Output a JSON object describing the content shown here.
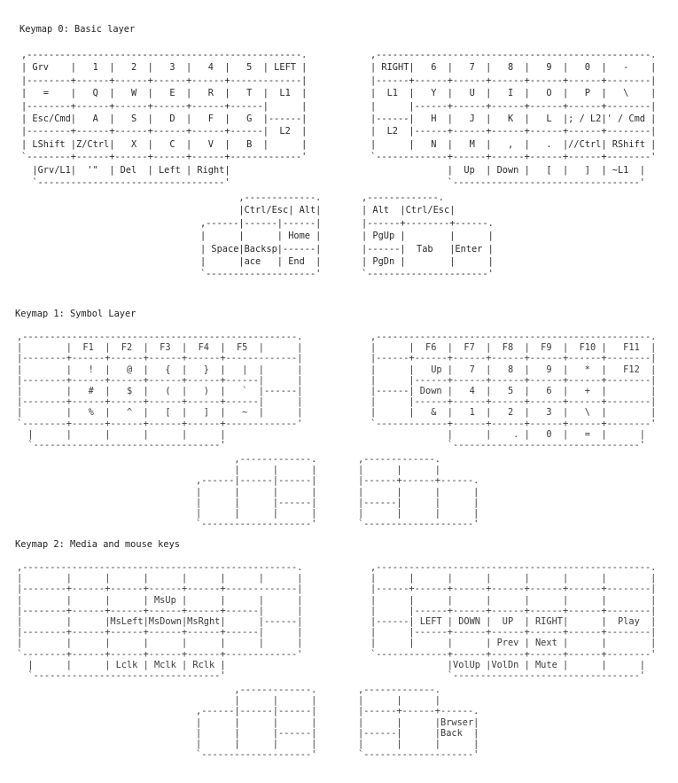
{
  "layers": [
    {
      "title": "Keymap 0: Basic layer",
      "left_hand": ",--------------------------------------------------.\n| Grv    |   1  |   2  |   3  |   4  |   5  | LEFT |\n|--------+------+------+------+------+-------------|\n|   =    |   Q  |   W  |   E  |   R  |   T  |  L1  |\n|--------+------+------+------+------+------|      |\n| Esc/Cmd|   A  |   S  |   D  |   F  |   G  |------|\n|--------+------+------+------+------+------|  L2  |\n| LShift |Z/Ctrl|   X  |   C  |   V  |   B  |      |\n`--------+------+------+------+------+-------------'\n  |Grv/L1|  '\"  | Del  | Left | Right|\n  `----------------------------------'",
      "right_hand": ",--------------------------------------------------.\n| RIGHT|   6  |   7  |   8  |   9  |   0  |   -    |\n|------+------+------+------+------+------+--------|\n|  L1  |   Y  |   U  |   I  |   O  |   P  |   \\    |\n|      |------+------+------+------+------+--------|\n|------|   H  |   J  |   K  |   L  |; / L2|' / Cmd |\n|  L2  |------+------+------+------+------+--------|\n|      |   N  |   M  |   ,  |   .  |//Ctrl| RShift |\n`-------------+------+------+------+------+--------'\n              |  Up  | Down |   [  |   ]  | ~L1  |\n              `----------------------------------'",
      "left_thumb": "       ,-------------.\n       |Ctrl/Esc| Alt|\n,------|------|------|\n|      |      | Home |\n| Space|Backsp|------|\n|      |ace   | End  |\n`--------------------'",
      "right_thumb": ",-------------.\n| Alt  |Ctrl/Esc|\n|------+--------+------.\n| PgUp |        |      |\n|------|  Tab   |Enter |\n| PgDn |        |      |\n`----------------------'"
    },
    {
      "title": "Keymap 1: Symbol Layer",
      "left_hand": ",--------------------------------------------------.\n|        |  F1  |  F2  |  F3  |  F4  |  F5  |      |\n|--------+------+------+------+------+-------------|\n|        |   !  |   @  |   {  |   }  |   |  |      |\n|--------+------+------+------+------+------|      |\n|        |   #  |   $  |   (  |   )  |   `  |------|\n|--------+------+------+------+------+------|      |\n|        |   %  |   ^  |   [  |   ]  |   ~  |      |\n`--------+------+------+------+------+-------------'\n  |      |      |      |      |      |\n  `----------------------------------'",
      "right_hand": ",--------------------------------------------------.\n|      |  F6  |  F7  |  F8  |  F9  |  F10 |   F11  |\n|------+------+------+------+------+------+--------|\n|      |   Up |   7  |   8  |   9  |   *  |   F12  |\n|      |------+------+------+------+------+--------|\n|------| Down |   4  |   5  |   6  |   +  |        |\n|      |------+------+------+------+------+--------|\n|      |   &  |   1  |   2  |   3  |   \\  |        |\n`-------------+------+------+------+------+--------'\n              |      |    . |   0  |   =  |      |\n              `----------------------------------'",
      "left_thumb": "       ,-------------.\n       |      |      |\n,------|------|------|\n|      |      |      |\n|      |      |------|\n|      |      |      |\n`--------------------'",
      "right_thumb": ",-------------.\n|      |      |\n|------+------+------.\n|      |      |      |\n|------|      |      |\n|      |      |      |\n`--------------------'"
    },
    {
      "title": "Keymap 2: Media and mouse keys",
      "left_hand": ",--------------------------------------------------.\n|        |      |      |      |      |      |      |\n|--------+------+------+------+------+-------------|\n|        |      |      | MsUp |      |      |      |\n|--------+------+------+------+------+------|      |\n|        |      |MsLeft|MsDown|MsRght|      |------|\n|--------+------+------+------+------+------|      |\n|        |      |      |      |      |      |      |\n`--------+------+------+------+------+-------------'\n  |      |      | Lclk | Mclk | Rclk |\n  `----------------------------------'",
      "right_hand": ",--------------------------------------------------.\n|      |      |      |      |      |      |        |\n|------+------+------+------+------+------+--------|\n|      |      |      |      |      |      |        |\n|      |------+------+------+------+------+--------|\n|------| LEFT | DOWN |  UP  | RIGHT|      |  Play  |\n|      |------+------+------+------+------+--------|\n|      |      |      | Prev | Next |      |        |\n`-------------+------+------+------+------+--------'\n              |VolUp |VolDn | Mute |      |      |\n              `----------------------------------'",
      "left_thumb": "       ,-------------.\n       |      |      |\n,------|------|------|\n|      |      |      |\n|      |      |------|\n|      |      |      |\n`--------------------'",
      "right_thumb": ",-------------.\n|      |      |\n|------+------+------.\n|      |      |Brwser|\n|------|      |Back  |\n|      |      |      |\n`--------------------'"
    }
  ]
}
